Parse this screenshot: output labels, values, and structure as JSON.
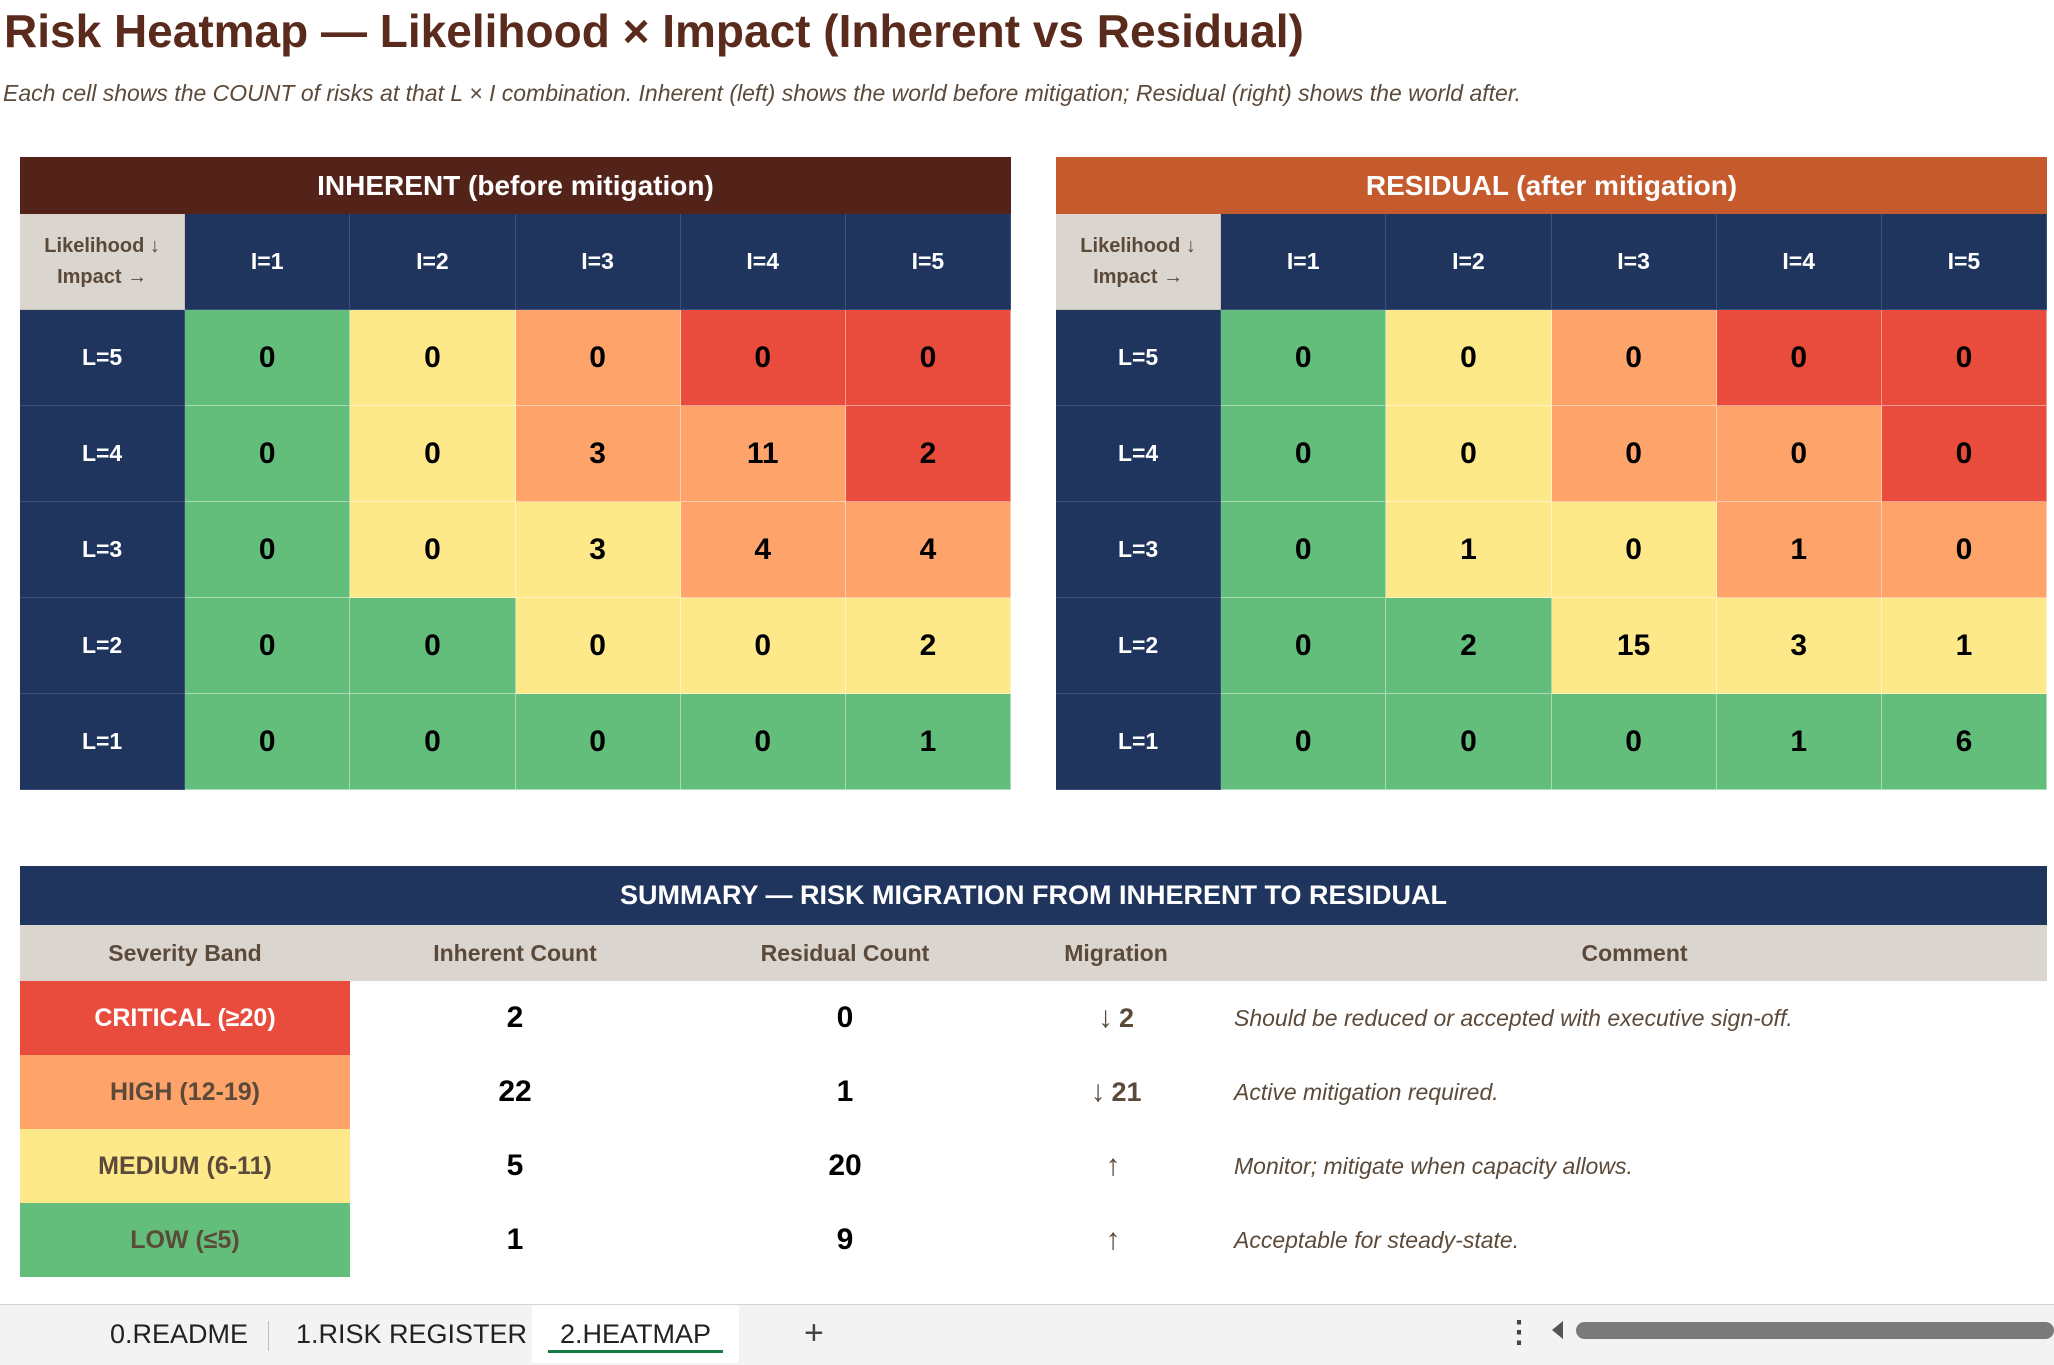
{
  "title": "Risk Heatmap — Likelihood × Impact (Inherent vs Residual)",
  "subtitle": "Each cell shows the COUNT of risks at that L × I combination. Inherent (left) shows the world before mitigation; Residual (right) shows the world after.",
  "colors": {
    "critical": "#e94b3c",
    "high": "#fea46a",
    "medium": "#fde88a",
    "low": "#63be7b",
    "navy": "#1f355e",
    "inherent_header": "#532219",
    "residual_header": "#c55a2d"
  },
  "heatmaps": {
    "corner_line1": "Likelihood ↓",
    "corner_line2": "Impact →",
    "columns": [
      "I=1",
      "I=2",
      "I=3",
      "I=4",
      "I=5"
    ],
    "rows": [
      "L=5",
      "L=4",
      "L=3",
      "L=2",
      "L=1"
    ],
    "severity": [
      [
        "low",
        "medium",
        "high",
        "critical",
        "critical"
      ],
      [
        "low",
        "medium",
        "high",
        "high",
        "critical"
      ],
      [
        "low",
        "medium",
        "medium",
        "high",
        "high"
      ],
      [
        "low",
        "low",
        "medium",
        "medium",
        "medium"
      ],
      [
        "low",
        "low",
        "low",
        "low",
        "low"
      ]
    ],
    "inherent": {
      "header": "INHERENT (before mitigation)",
      "values": [
        [
          0,
          0,
          0,
          0,
          0
        ],
        [
          0,
          0,
          3,
          11,
          2
        ],
        [
          0,
          0,
          3,
          4,
          4
        ],
        [
          0,
          0,
          0,
          0,
          2
        ],
        [
          0,
          0,
          0,
          0,
          1
        ]
      ]
    },
    "residual": {
      "header": "RESIDUAL (after mitigation)",
      "values": [
        [
          0,
          0,
          0,
          0,
          0
        ],
        [
          0,
          0,
          0,
          0,
          0
        ],
        [
          0,
          1,
          0,
          1,
          0
        ],
        [
          0,
          2,
          15,
          3,
          1
        ],
        [
          0,
          0,
          0,
          1,
          6
        ]
      ]
    }
  },
  "summary": {
    "header": "SUMMARY — RISK MIGRATION FROM INHERENT TO RESIDUAL",
    "columns": {
      "band": "Severity Band",
      "inherent": "Inherent Count",
      "residual": "Residual Count",
      "migration": "Migration",
      "comment": "Comment"
    },
    "rows": [
      {
        "band": "CRITICAL (≥20)",
        "level": "critical",
        "inherent": "2",
        "residual": "0",
        "arrow": "↓",
        "delta": "2",
        "comment": "Should be reduced or accepted with executive sign-off."
      },
      {
        "band": "HIGH (12-19)",
        "level": "high",
        "inherent": "22",
        "residual": "1",
        "arrow": "↓",
        "delta": "21",
        "comment": "Active mitigation required."
      },
      {
        "band": "MEDIUM (6-11)",
        "level": "medium",
        "inherent": "5",
        "residual": "20",
        "arrow": "↑",
        "delta": "",
        "comment": "Monitor; mitigate when capacity allows."
      },
      {
        "band": "LOW (≤5)",
        "level": "low",
        "inherent": "1",
        "residual": "9",
        "arrow": "↑",
        "delta": "",
        "comment": "Acceptable for steady-state."
      }
    ]
  },
  "tabs": {
    "readme": "0.README",
    "register": "1.RISK REGISTER",
    "heatmap": "2.HEATMAP",
    "add": "+",
    "more": "⋮"
  }
}
